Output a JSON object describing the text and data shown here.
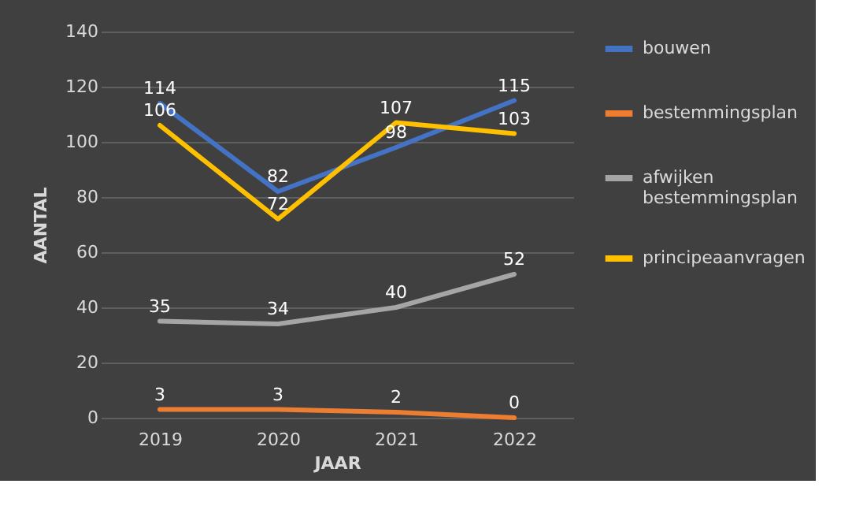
{
  "chart_data": {
    "type": "line",
    "xlabel": "JAAR",
    "ylabel": "AANTAL",
    "categories": [
      "2019",
      "2020",
      "2021",
      "2022"
    ],
    "series": [
      {
        "name": "bouwen",
        "color": "#4472c4",
        "values": [
          114,
          82,
          98,
          115
        ]
      },
      {
        "name": "bestemmingsplan",
        "color": "#ed7d31",
        "values": [
          3,
          3,
          2,
          0
        ]
      },
      {
        "name": "afwijken bestemmingsplan",
        "color": "#a5a5a5",
        "values": [
          35,
          34,
          40,
          52
        ]
      },
      {
        "name": "principeaanvragen",
        "color": "#ffc000",
        "values": [
          106,
          72,
          107,
          103
        ]
      }
    ],
    "ylim": [
      0,
      140
    ],
    "yticks": [
      0,
      20,
      40,
      60,
      80,
      100,
      120,
      140
    ],
    "grid": "y",
    "legend": "right",
    "data_labels": true,
    "marker": "none",
    "line_style": "solid"
  }
}
